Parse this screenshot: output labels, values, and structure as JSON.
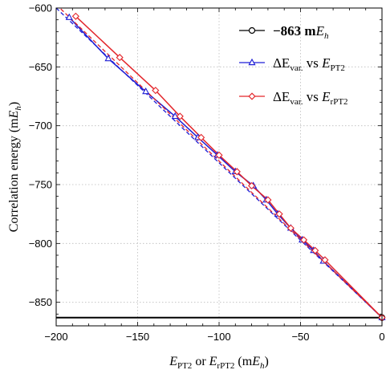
{
  "chart_data": {
    "type": "line",
    "title": "",
    "xlabel": {
      "base1": "E",
      "sub1": "PT2",
      "mid": " or ",
      "base2": "E",
      "sub2": "rPT2",
      "unit_open": " (m",
      "unit_var": "E",
      "unit_sub": "h",
      "unit_close": ")"
    },
    "ylabel": {
      "text": "Correlation energy (m",
      "var": "E",
      "sub": "h",
      "close": ")"
    },
    "xlim": [
      -200,
      0
    ],
    "ylim": [
      -870,
      -600
    ],
    "xticks": [
      -200,
      -150,
      -100,
      -50,
      0
    ],
    "yticks": [
      -850,
      -800,
      -750,
      -700,
      -650,
      -600
    ],
    "xtick_labels": [
      "−200",
      "−150",
      "−100",
      "−50",
      "0"
    ],
    "ytick_labels": [
      "−850",
      "−800",
      "−750",
      "−700",
      "−650",
      "−600"
    ],
    "grid": true,
    "legend_position": "top-right",
    "reference_line": {
      "value": -863,
      "color": "#000000",
      "legend": {
        "text": "−863 m",
        "var": "E",
        "sub": "h"
      }
    },
    "series": [
      {
        "legend": {
          "pre": "ΔE",
          "sub": "var.",
          "mid": " vs ",
          "var": "E",
          "sub2": "PT2"
        },
        "color": "#1f1fd6",
        "marker": "triangle",
        "x": [
          -192,
          -168,
          -145,
          -127,
          -113,
          -101,
          -90,
          -79,
          -71,
          -64,
          -56,
          -49,
          -42,
          -36,
          0
        ],
        "y": [
          -608,
          -643,
          -671,
          -692,
          -710,
          -725,
          -739,
          -751,
          -763,
          -775,
          -787,
          -797,
          -806,
          -815,
          -863
        ],
        "fit": {
          "x": [
            -200,
            0
          ],
          "y": [
            -600,
            -863
          ],
          "dashed": true
        }
      },
      {
        "legend": {
          "pre": "ΔE",
          "sub": "var.",
          "mid": " vs ",
          "var": "E",
          "sub2": "rPT2"
        },
        "color": "#e3262b",
        "marker": "diamond",
        "x": [
          -188,
          -161,
          -139,
          -124,
          -111,
          -100,
          -89,
          -80,
          -70,
          -63,
          -56,
          -48,
          -41,
          -35,
          0
        ],
        "y": [
          -607,
          -642,
          -670,
          -692,
          -710,
          -725,
          -739,
          -751,
          -763,
          -775,
          -787,
          -797,
          -806,
          -814,
          -863
        ],
        "fit": {
          "x": [
            -200,
            0
          ],
          "y": [
            -597,
            -863
          ],
          "dashed": true
        }
      }
    ]
  }
}
